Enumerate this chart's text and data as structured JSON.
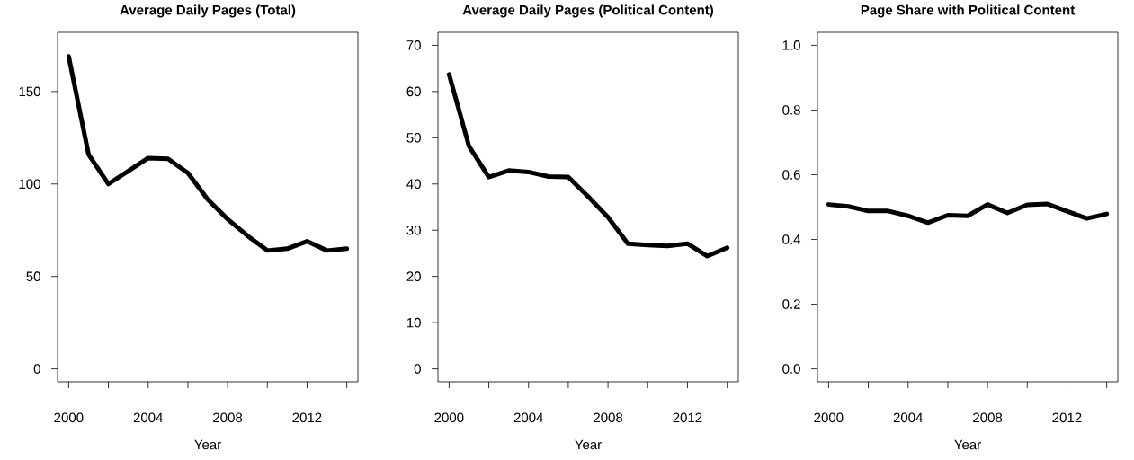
{
  "chart_data": [
    {
      "type": "line",
      "title": "Average Daily Pages (Total)",
      "xlabel": "Year",
      "color": "#000000",
      "x": [
        2000,
        2001,
        2002,
        2003,
        2004,
        2005,
        2006,
        2007,
        2008,
        2009,
        2010,
        2011,
        2012,
        2013,
        2014
      ],
      "values": [
        169,
        116,
        100,
        107,
        114,
        113.6,
        106,
        91.6,
        81,
        72,
        64,
        65,
        69,
        64,
        65
      ],
      "xlim": [
        1999.44,
        2014.56
      ],
      "ylim": [
        -7,
        182
      ],
      "xticks": [
        2000,
        {
          "value": 2002,
          "label": null
        },
        2004,
        {
          "value": 2006,
          "label": null
        },
        2008,
        {
          "value": 2010,
          "label": null
        },
        2012,
        {
          "value": 2014,
          "label": null
        }
      ],
      "yticks": [
        0,
        50,
        100,
        150
      ]
    },
    {
      "type": "line",
      "title": "Average Daily Pages (Political Content)",
      "xlabel": "Year",
      "color": "#000000",
      "x": [
        2000,
        2001,
        2002,
        2003,
        2004,
        2005,
        2006,
        2007,
        2008,
        2009,
        2010,
        2011,
        2012,
        2013,
        2014
      ],
      "values": [
        63.7,
        48.2,
        41.5,
        42.9,
        42.6,
        41.6,
        41.5,
        37.3,
        32.8,
        27.1,
        26.8,
        26.6,
        27.1,
        24.4,
        26.2
      ],
      "xlim": [
        1999.44,
        2014.56
      ],
      "ylim": [
        -2.8,
        72.8
      ],
      "xticks": [
        2000,
        {
          "value": 2002,
          "label": null
        },
        2004,
        {
          "value": 2006,
          "label": null
        },
        2008,
        {
          "value": 2010,
          "label": null
        },
        2012,
        {
          "value": 2014,
          "label": null
        }
      ],
      "yticks": [
        0,
        10,
        20,
        30,
        40,
        50,
        60,
        70
      ]
    },
    {
      "type": "line",
      "title": "Page Share with Political Content",
      "xlabel": "Year",
      "color": "#000000",
      "x": [
        2000,
        2001,
        2002,
        2003,
        2004,
        2005,
        2006,
        2007,
        2008,
        2009,
        2010,
        2011,
        2012,
        2013,
        2014
      ],
      "values": [
        0.508,
        0.502,
        0.488,
        0.488,
        0.473,
        0.452,
        0.475,
        0.473,
        0.508,
        0.482,
        0.507,
        0.51,
        0.487,
        0.465,
        0.479
      ],
      "xlim": [
        1999.44,
        2014.56
      ],
      "ylim": [
        -0.04,
        1.04
      ],
      "xticks": [
        2000,
        {
          "value": 2002,
          "label": null
        },
        2004,
        {
          "value": 2006,
          "label": null
        },
        2008,
        {
          "value": 2010,
          "label": null
        },
        2012,
        {
          "value": 2014,
          "label": null
        }
      ],
      "yticks": [
        {
          "value": 0,
          "label": "0.0"
        },
        {
          "value": 0.2,
          "label": "0.2"
        },
        {
          "value": 0.4,
          "label": "0.4"
        },
        {
          "value": 0.6,
          "label": "0.6"
        },
        {
          "value": 0.8,
          "label": "0.8"
        },
        {
          "value": 1,
          "label": "1.0"
        }
      ]
    }
  ]
}
